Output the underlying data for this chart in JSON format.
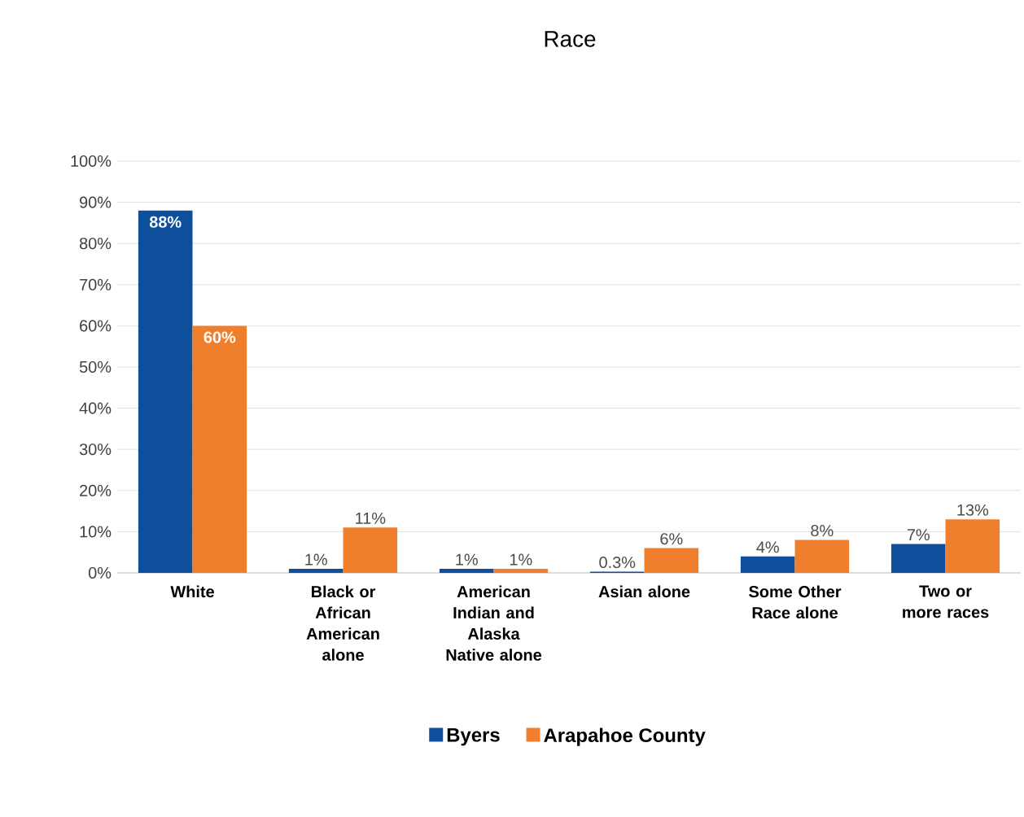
{
  "chart_data": {
    "type": "bar",
    "title": "Race",
    "categories": [
      "White",
      "Black or African American alone",
      "American Indian and Alaska Native alone",
      "Asian alone",
      "Some Other Race alone",
      "Two or more races"
    ],
    "series": [
      {
        "name": "Byers",
        "color": "#0e4f9c",
        "values": [
          88,
          1,
          1,
          0.3,
          4,
          7
        ],
        "value_labels": [
          "88%",
          "1%",
          "1%",
          "0.3%",
          "4%",
          "7%"
        ]
      },
      {
        "name": "Arapahoe County",
        "color": "#f07f2d",
        "values": [
          60,
          11,
          1,
          6,
          8,
          13
        ],
        "value_labels": [
          "60%",
          "11%",
          "1%",
          "6%",
          "8%",
          "13%"
        ]
      }
    ],
    "ylim": [
      0,
      100
    ],
    "yticks": [
      {
        "value": 0,
        "label": "0%"
      },
      {
        "value": 10,
        "label": "10%"
      },
      {
        "value": 20,
        "label": "20%"
      },
      {
        "value": 30,
        "label": "30%"
      },
      {
        "value": 40,
        "label": "40%"
      },
      {
        "value": 50,
        "label": "50%"
      },
      {
        "value": 60,
        "label": "60%"
      },
      {
        "value": 70,
        "label": "70%"
      },
      {
        "value": 80,
        "label": "80%"
      },
      {
        "value": 90,
        "label": "90%"
      },
      {
        "value": 100,
        "label": "100%"
      }
    ],
    "grid": "y",
    "legend": "bottom"
  }
}
